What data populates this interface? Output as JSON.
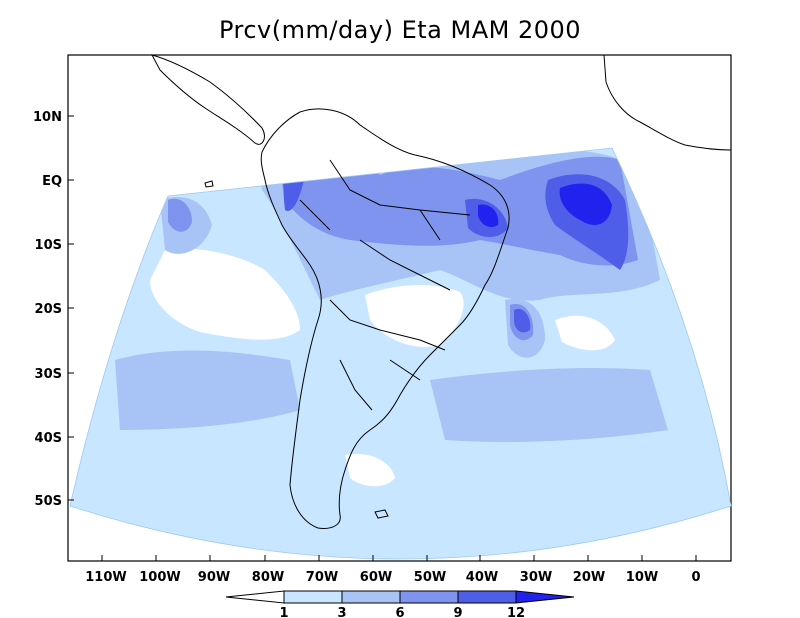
{
  "title": "Prcv(mm/day) Eta MAM 2000",
  "map": {
    "projection": "conic",
    "land_outlines": "black",
    "ocean_background": "white"
  },
  "axes": {
    "lat_labels": [
      "10N",
      "EQ",
      "10S",
      "20S",
      "30S",
      "40S",
      "50S"
    ],
    "lon_labels": [
      "110W",
      "100W",
      "90W",
      "80W",
      "70W",
      "60W",
      "50W",
      "40W",
      "30W",
      "20W",
      "10W",
      "0"
    ]
  },
  "legend": {
    "levels": [
      "1",
      "3",
      "6",
      "9",
      "12"
    ],
    "colors": [
      "#ffffff",
      "#c8e6ff",
      "#a8c4f6",
      "#7f94ee",
      "#4f5ee8",
      "#2222ee"
    ]
  },
  "colors": {
    "band_1_3": "#c8e6ff",
    "band_3_6": "#a8c4f6",
    "band_6_9": "#7f94ee",
    "band_9_12": "#4f5ee8",
    "band_12_plus": "#2222ee",
    "outline": "#000000"
  }
}
